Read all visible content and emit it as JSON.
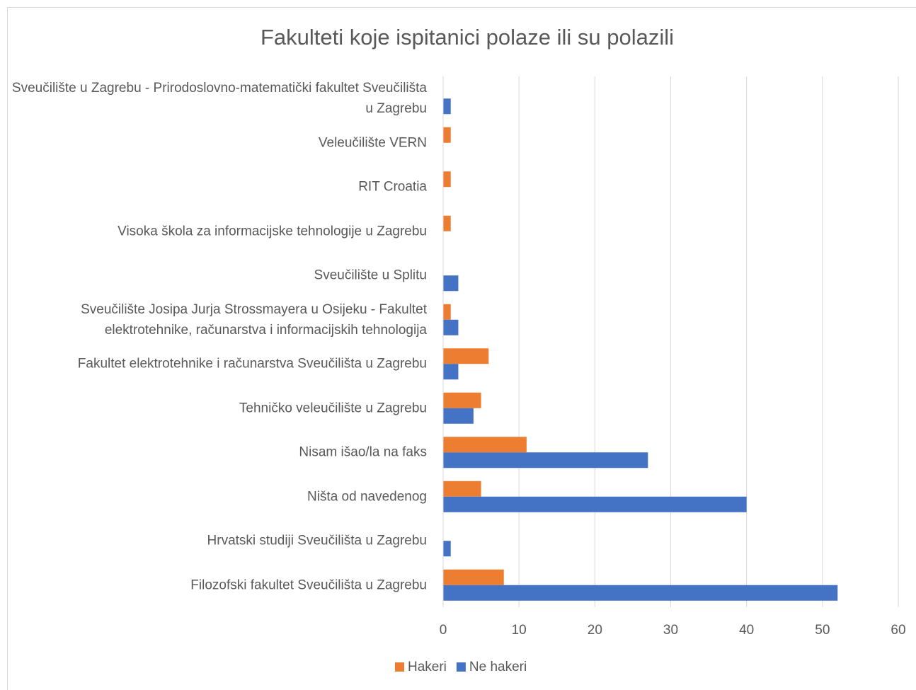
{
  "chart_data": {
    "type": "barh",
    "title": "Fakulteti koje ispitanici polaze ili su polazili",
    "categories": [
      "Sveučilište u Zagrebu - Prirodoslovno-matematički fakultet Sveučilišta u Zagrebu",
      "Veleučilište VERN",
      "RIT Croatia",
      "Visoka škola za informacijske tehnologije u Zagrebu",
      "Sveučilište u Splitu",
      "Sveučilište Josipa Jurja Strossmayera u Osijeku - Fakultet elektrotehnike, računarstva i informacijskih tehnologija",
      "Fakultet elektrotehnike i računarstva Sveučilišta u Zagrebu",
      "Tehničko veleučilište u Zagrebu",
      "Nisam išao/la na faks",
      "Ništa od navedenog",
      "Hrvatski studiji Sveučilišta u Zagrebu",
      "Filozofski fakultet Sveučilišta u Zagrebu"
    ],
    "series": [
      {
        "name": "Hakeri",
        "color": "#ed7d31",
        "values": [
          0,
          1,
          1,
          1,
          0,
          1,
          6,
          5,
          11,
          5,
          0,
          8
        ]
      },
      {
        "name": "Ne hakeri",
        "color": "#4472c4",
        "values": [
          1,
          0,
          0,
          0,
          2,
          2,
          2,
          4,
          27,
          40,
          1,
          52
        ]
      }
    ],
    "xlim": [
      0,
      60
    ],
    "xticks": [
      0,
      10,
      20,
      30,
      40,
      50,
      60
    ],
    "grid": true,
    "legend": "bottom"
  }
}
